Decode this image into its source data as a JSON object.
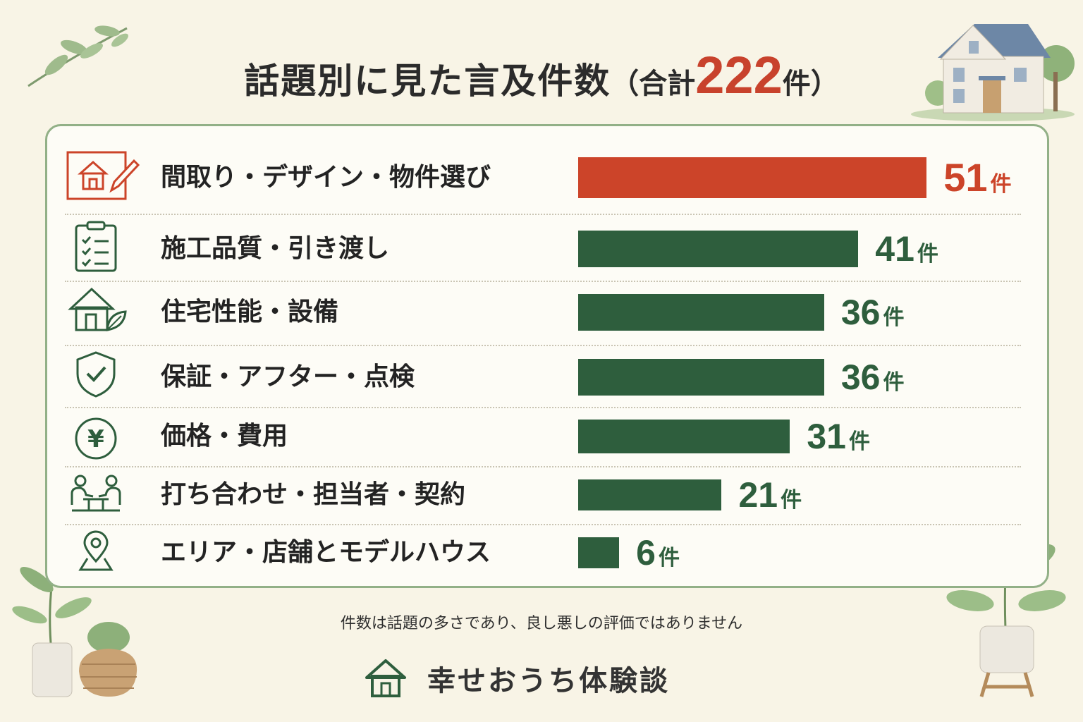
{
  "title": {
    "main": "話題別に見た言及件数",
    "open_paren": "（合計",
    "total": "222",
    "unit": "件",
    "close_paren": "）"
  },
  "colors": {
    "highlight": "#cc4429",
    "bar": "#2e5e3d",
    "border": "#92b087"
  },
  "chart_data": {
    "type": "bar",
    "orientation": "horizontal",
    "categories": [
      "間取り・デザイン・物件選び",
      "施工品質・引き渡し",
      "住宅性能・設備",
      "保証・アフター・点検",
      "価格・費用",
      "打ち合わせ・担当者・契約",
      "エリア・店舗とモデルハウス"
    ],
    "values": [
      51,
      41,
      36,
      36,
      31,
      21,
      6
    ],
    "unit": "件",
    "highlight_index": 0,
    "icons": [
      "floorplan-pencil-icon",
      "clipboard-checklist-icon",
      "house-leaf-icon",
      "shield-check-icon",
      "yen-coin-icon",
      "meeting-people-icon",
      "map-pin-icon"
    ],
    "total": 222,
    "grid": false,
    "legend": "none"
  },
  "footnote": "件数は話題の多さであり、良し悪しの評価ではありません",
  "brand": {
    "name": "幸せおうち体験談",
    "icon": "house-outline-icon"
  }
}
